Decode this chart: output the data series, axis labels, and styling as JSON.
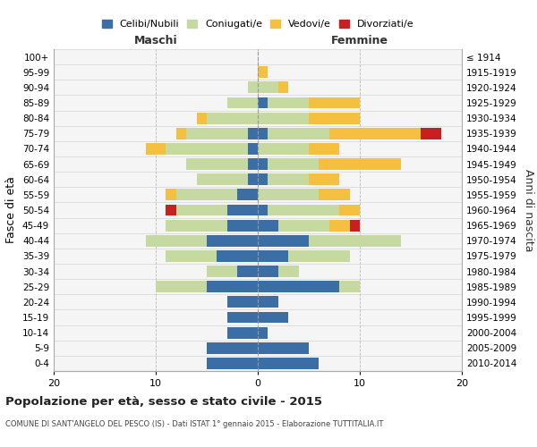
{
  "age_groups": [
    "0-4",
    "5-9",
    "10-14",
    "15-19",
    "20-24",
    "25-29",
    "30-34",
    "35-39",
    "40-44",
    "45-49",
    "50-54",
    "55-59",
    "60-64",
    "65-69",
    "70-74",
    "75-79",
    "80-84",
    "85-89",
    "90-94",
    "95-99",
    "100+"
  ],
  "birth_years": [
    "2010-2014",
    "2005-2009",
    "2000-2004",
    "1995-1999",
    "1990-1994",
    "1985-1989",
    "1980-1984",
    "1975-1979",
    "1970-1974",
    "1965-1969",
    "1960-1964",
    "1955-1959",
    "1950-1954",
    "1945-1949",
    "1940-1944",
    "1935-1939",
    "1930-1934",
    "1925-1929",
    "1920-1924",
    "1915-1919",
    "≤ 1914"
  ],
  "male": {
    "celibi": [
      5,
      5,
      3,
      3,
      3,
      5,
      2,
      4,
      5,
      3,
      3,
      2,
      1,
      1,
      1,
      1,
      0,
      0,
      0,
      0,
      0
    ],
    "coniugati": [
      0,
      0,
      0,
      0,
      0,
      5,
      3,
      5,
      6,
      6,
      5,
      6,
      5,
      6,
      8,
      6,
      5,
      3,
      1,
      0,
      0
    ],
    "vedovi": [
      0,
      0,
      0,
      0,
      0,
      0,
      0,
      0,
      0,
      0,
      0,
      1,
      0,
      0,
      2,
      1,
      1,
      0,
      0,
      0,
      0
    ],
    "divorziati": [
      0,
      0,
      0,
      0,
      0,
      0,
      0,
      0,
      0,
      0,
      1,
      0,
      0,
      0,
      0,
      0,
      0,
      0,
      0,
      0,
      0
    ]
  },
  "female": {
    "nubili": [
      6,
      5,
      1,
      3,
      2,
      8,
      2,
      3,
      5,
      2,
      1,
      0,
      1,
      1,
      0,
      1,
      0,
      1,
      0,
      0,
      0
    ],
    "coniugate": [
      0,
      0,
      0,
      0,
      0,
      2,
      2,
      6,
      9,
      5,
      7,
      6,
      4,
      5,
      5,
      6,
      5,
      4,
      2,
      0,
      0
    ],
    "vedove": [
      0,
      0,
      0,
      0,
      0,
      0,
      0,
      0,
      0,
      2,
      2,
      3,
      3,
      8,
      3,
      9,
      5,
      5,
      1,
      1,
      0
    ],
    "divorziate": [
      0,
      0,
      0,
      0,
      0,
      0,
      0,
      0,
      0,
      1,
      0,
      0,
      0,
      0,
      0,
      2,
      0,
      0,
      0,
      0,
      0
    ]
  },
  "colors": {
    "celibi_nubili": "#3a6ea5",
    "coniugati": "#c5d9a0",
    "vedovi": "#f5c040",
    "divorziati": "#c82020"
  },
  "xlim": 20,
  "title": "Popolazione per età, sesso e stato civile - 2015",
  "subtitle": "COMUNE DI SANT'ANGELO DEL PESCO (IS) - Dati ISTAT 1° gennaio 2015 - Elaborazione TUTTITALIA.IT",
  "ylabel_left": "Fasce di età",
  "ylabel_right": "Anni di nascita",
  "xlabel_maschi": "Maschi",
  "xlabel_femmine": "Femmine",
  "legend_labels": [
    "Celibi/Nubili",
    "Coniugati/e",
    "Vedovi/e",
    "Divorziati/e"
  ]
}
